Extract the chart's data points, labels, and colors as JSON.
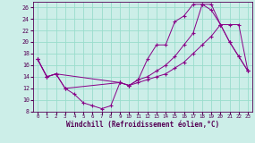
{
  "xlabel": "Windchill (Refroidissement éolien,°C)",
  "bg_color": "#cceee8",
  "grid_color": "#99ddcc",
  "line_color": "#880088",
  "xlim": [
    -0.5,
    23.5
  ],
  "ylim": [
    8,
    27
  ],
  "xticks": [
    0,
    1,
    2,
    3,
    4,
    5,
    6,
    7,
    8,
    9,
    10,
    11,
    12,
    13,
    14,
    15,
    16,
    17,
    18,
    19,
    20,
    21,
    22,
    23
  ],
  "yticks": [
    8,
    10,
    12,
    14,
    16,
    18,
    20,
    22,
    24,
    26
  ],
  "series1_x": [
    0,
    1,
    2,
    3,
    4,
    5,
    6,
    7,
    8,
    9,
    10,
    11,
    12,
    13,
    14,
    15,
    16,
    17,
    18,
    19,
    20,
    21,
    22,
    23
  ],
  "series1_y": [
    17,
    14,
    14.5,
    12,
    11,
    9.5,
    9,
    8.5,
    9,
    13,
    12.5,
    13.5,
    17,
    19.5,
    19.5,
    23.5,
    24.5,
    26.5,
    26.5,
    25.5,
    23,
    20,
    17.5,
    15
  ],
  "series2_x": [
    0,
    1,
    2,
    3,
    9,
    10,
    11,
    12,
    13,
    14,
    15,
    16,
    17,
    18,
    19,
    20,
    21,
    22,
    23
  ],
  "series2_y": [
    17,
    14,
    14.5,
    12,
    13,
    12.5,
    13.5,
    14,
    15,
    16,
    17.5,
    19.5,
    21.5,
    26.5,
    26.5,
    23,
    20,
    17.5,
    15
  ],
  "series3_x": [
    0,
    1,
    2,
    9,
    10,
    11,
    12,
    13,
    14,
    15,
    16,
    17,
    18,
    19,
    20,
    21,
    22,
    23
  ],
  "series3_y": [
    17,
    14,
    14.5,
    13,
    12.5,
    13.0,
    13.5,
    14.0,
    14.5,
    15.5,
    16.5,
    18.0,
    19.5,
    21.0,
    23.0,
    23.0,
    23.0,
    15
  ]
}
